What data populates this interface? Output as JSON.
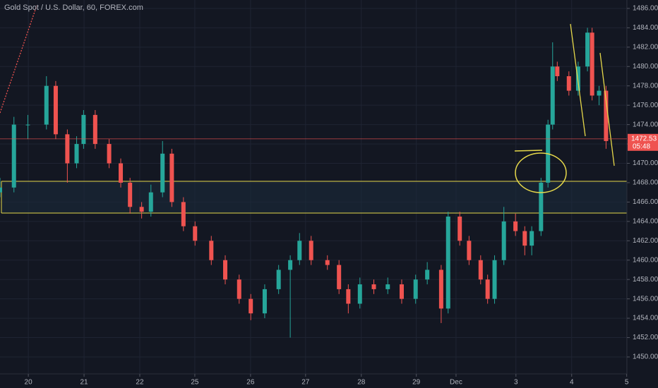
{
  "chart_data": {
    "type": "candlestick",
    "title": "Gold Spot / U.S. Dollar, 60, FOREX.com",
    "up_color": "#26a69a",
    "down_color": "#ef5350",
    "grid": true,
    "xlim": [
      0,
      270
    ],
    "ylim": [
      1448.25,
      1486.87
    ],
    "xticks": [
      {
        "value": 12.2,
        "label": "20"
      },
      {
        "value": 36.2,
        "label": "21"
      },
      {
        "value": 60.2,
        "label": "22"
      },
      {
        "value": 83.9,
        "label": "25"
      },
      {
        "value": 107.9,
        "label": "26"
      },
      {
        "value": 131.6,
        "label": "27"
      },
      {
        "value": 155.6,
        "label": "28"
      },
      {
        "value": 179.3,
        "label": "29"
      },
      {
        "value": 196.4,
        "label": "Dec"
      },
      {
        "value": 222.2,
        "label": "3"
      },
      {
        "value": 246.2,
        "label": "4"
      },
      {
        "value": 269.9,
        "label": "5"
      }
    ],
    "yticks": [
      {
        "value": 1450,
        "label": "1450.00"
      },
      {
        "value": 1452,
        "label": "1452.00"
      },
      {
        "value": 1454,
        "label": "1454.00"
      },
      {
        "value": 1456,
        "label": "1456.00"
      },
      {
        "value": 1458,
        "label": "1458.00"
      },
      {
        "value": 1460,
        "label": "1460.00"
      },
      {
        "value": 1462,
        "label": "1462.00"
      },
      {
        "value": 1464,
        "label": "1464.00"
      },
      {
        "value": 1466,
        "label": "1466.00"
      },
      {
        "value": 1468,
        "label": "1468.00"
      },
      {
        "value": 1470,
        "label": "1470.00"
      },
      {
        "value": 1472,
        "label": "1472.00"
      },
      {
        "value": 1474,
        "label": "1474.00"
      },
      {
        "value": 1476,
        "label": "1476.00"
      },
      {
        "value": 1478,
        "label": "1478.00"
      },
      {
        "value": 1480,
        "label": "1480.00"
      },
      {
        "value": 1482,
        "label": "1482.00"
      },
      {
        "value": 1484,
        "label": "1484.00"
      },
      {
        "value": 1486,
        "label": "1486.00"
      }
    ],
    "last_price": 1472.53,
    "countdown": "05:48",
    "candles": {
      "x": [
        0,
        6,
        12,
        20,
        24,
        29,
        33,
        36,
        41,
        47,
        52,
        56,
        61,
        65,
        70,
        74,
        79,
        84,
        91,
        97,
        103,
        108,
        114,
        120,
        125,
        129,
        134,
        141,
        146,
        150,
        155,
        161,
        167,
        173,
        179,
        184,
        190,
        193,
        198,
        202,
        207,
        210,
        213,
        217,
        222,
        226,
        229,
        233,
        236,
        238,
        240,
        245,
        249,
        253,
        255,
        258,
        261
      ],
      "open": [
        1467,
        1467.5,
        1474,
        1474,
        1478,
        1473,
        1470,
        1472,
        1475,
        1472,
        1470,
        1468,
        1465.5,
        1465,
        1467,
        1471,
        1466,
        1463.5,
        1462,
        1460,
        1458,
        1456,
        1454.5,
        1457,
        1459,
        1460,
        1462,
        1460,
        1459.5,
        1457,
        1455.5,
        1457.5,
        1457,
        1457.5,
        1456,
        1458,
        1459,
        1455,
        1464.5,
        1462,
        1460,
        1458,
        1456,
        1460,
        1464,
        1463,
        1461.5,
        1463,
        1468,
        1474,
        1480,
        1479,
        1477.5,
        1480,
        1483.5,
        1477,
        1477.5
      ],
      "high": [
        1468.5,
        1474.8,
        1475,
        1479,
        1478.5,
        1473.5,
        1472.8,
        1475.5,
        1475.5,
        1472.5,
        1470.5,
        1468.5,
        1466,
        1467.8,
        1472.3,
        1471.5,
        1466.5,
        1464,
        1462.5,
        1460.5,
        1458.5,
        1456.5,
        1457.5,
        1459.5,
        1460.5,
        1462.8,
        1462.5,
        1460.5,
        1460,
        1457.5,
        1458.2,
        1458,
        1458.2,
        1458,
        1458.5,
        1459.8,
        1459.5,
        1465,
        1465,
        1462.5,
        1460.5,
        1458.5,
        1460.5,
        1465.5,
        1464.8,
        1463.5,
        1463.5,
        1468.5,
        1474.5,
        1482.5,
        1480.5,
        1479.5,
        1480.5,
        1484,
        1484,
        1478,
        1478
      ],
      "low": [
        1466.5,
        1467,
        1472.5,
        1473.5,
        1472.5,
        1468,
        1469.5,
        1471.5,
        1471.5,
        1469.5,
        1467.5,
        1464.8,
        1464.3,
        1464.5,
        1466.5,
        1465.5,
        1463,
        1461.5,
        1459.5,
        1457.5,
        1455.5,
        1453.8,
        1454,
        1456.5,
        1452,
        1459.5,
        1459.5,
        1459,
        1456.5,
        1454.5,
        1455,
        1456.5,
        1456.5,
        1455.5,
        1455.5,
        1457.5,
        1453.5,
        1454.5,
        1461.5,
        1459.5,
        1457.5,
        1455.5,
        1455.5,
        1459.5,
        1462.5,
        1460.5,
        1460.5,
        1462.5,
        1467.5,
        1473.5,
        1478.5,
        1477,
        1477,
        1479.5,
        1476.5,
        1476,
        1471.5
      ],
      "close": [
        1467.5,
        1474,
        1474,
        1478,
        1473,
        1470,
        1472,
        1475,
        1472,
        1470,
        1468,
        1465.5,
        1465,
        1467,
        1471,
        1466,
        1463.5,
        1462,
        1460,
        1458,
        1456,
        1454.5,
        1457,
        1459,
        1460,
        1462,
        1460,
        1459.5,
        1457,
        1455.5,
        1457.5,
        1457,
        1457.5,
        1456,
        1458,
        1459,
        1455,
        1464.5,
        1462,
        1460,
        1458,
        1456,
        1460,
        1464,
        1463,
        1461.5,
        1463,
        1468,
        1474,
        1480,
        1479,
        1477.5,
        1480,
        1483.5,
        1477,
        1477.5,
        1472.3
      ]
    }
  }
}
